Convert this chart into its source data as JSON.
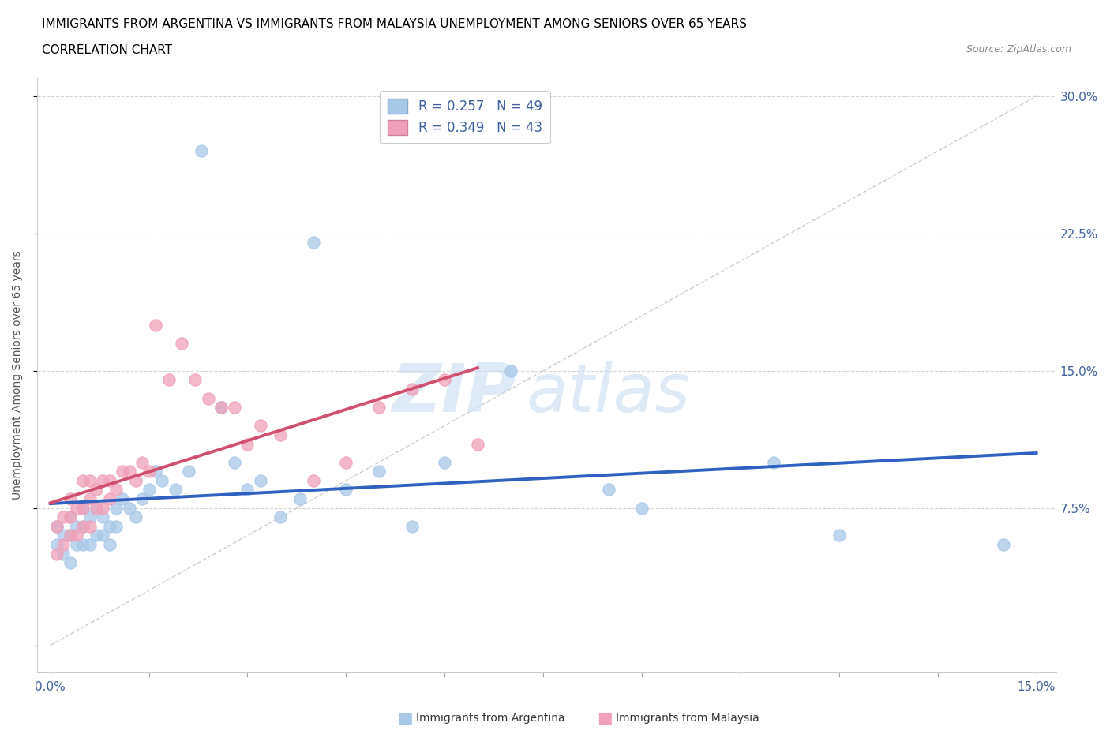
{
  "title_line1": "IMMIGRANTS FROM ARGENTINA VS IMMIGRANTS FROM MALAYSIA UNEMPLOYMENT AMONG SENIORS OVER 65 YEARS",
  "title_line2": "CORRELATION CHART",
  "source_text": "Source: ZipAtlas.com",
  "ylabel_label": "Unemployment Among Seniors over 65 years",
  "xlim": [
    0.0,
    0.15
  ],
  "ylim": [
    0.0,
    0.3
  ],
  "argentina_R": "0.257",
  "argentina_N": "49",
  "malaysia_R": "0.349",
  "malaysia_N": "43",
  "argentina_color": "#a8c8e8",
  "malaysia_color": "#f0a0b8",
  "argentina_line_color": "#3060c0",
  "malaysia_line_color": "#d05070",
  "diag_line_color": "#c8c8c8",
  "watermark_color": "#d0e4f0",
  "arg_x": [
    0.001,
    0.001,
    0.002,
    0.002,
    0.003,
    0.003,
    0.003,
    0.004,
    0.004,
    0.005,
    0.005,
    0.005,
    0.006,
    0.006,
    0.007,
    0.007,
    0.008,
    0.008,
    0.009,
    0.009,
    0.01,
    0.01,
    0.011,
    0.012,
    0.013,
    0.014,
    0.015,
    0.016,
    0.017,
    0.019,
    0.021,
    0.023,
    0.026,
    0.028,
    0.03,
    0.032,
    0.035,
    0.038,
    0.04,
    0.045,
    0.05,
    0.055,
    0.06,
    0.07,
    0.085,
    0.09,
    0.11,
    0.12,
    0.145
  ],
  "arg_y": [
    0.055,
    0.065,
    0.05,
    0.06,
    0.045,
    0.06,
    0.07,
    0.055,
    0.065,
    0.055,
    0.065,
    0.075,
    0.055,
    0.07,
    0.06,
    0.075,
    0.06,
    0.07,
    0.055,
    0.065,
    0.065,
    0.075,
    0.08,
    0.075,
    0.07,
    0.08,
    0.085,
    0.095,
    0.09,
    0.085,
    0.095,
    0.27,
    0.13,
    0.1,
    0.085,
    0.09,
    0.07,
    0.08,
    0.22,
    0.085,
    0.095,
    0.065,
    0.1,
    0.15,
    0.085,
    0.075,
    0.1,
    0.06,
    0.055
  ],
  "mal_x": [
    0.001,
    0.001,
    0.002,
    0.002,
    0.003,
    0.003,
    0.003,
    0.004,
    0.004,
    0.005,
    0.005,
    0.005,
    0.006,
    0.006,
    0.006,
    0.007,
    0.007,
    0.008,
    0.008,
    0.009,
    0.009,
    0.01,
    0.011,
    0.012,
    0.013,
    0.014,
    0.015,
    0.016,
    0.018,
    0.02,
    0.022,
    0.024,
    0.026,
    0.028,
    0.03,
    0.032,
    0.035,
    0.04,
    0.045,
    0.05,
    0.055,
    0.06,
    0.065
  ],
  "mal_y": [
    0.05,
    0.065,
    0.055,
    0.07,
    0.06,
    0.07,
    0.08,
    0.06,
    0.075,
    0.065,
    0.075,
    0.09,
    0.065,
    0.08,
    0.09,
    0.075,
    0.085,
    0.075,
    0.09,
    0.08,
    0.09,
    0.085,
    0.095,
    0.095,
    0.09,
    0.1,
    0.095,
    0.175,
    0.145,
    0.165,
    0.145,
    0.135,
    0.13,
    0.13,
    0.11,
    0.12,
    0.115,
    0.09,
    0.1,
    0.13,
    0.14,
    0.145,
    0.11
  ]
}
